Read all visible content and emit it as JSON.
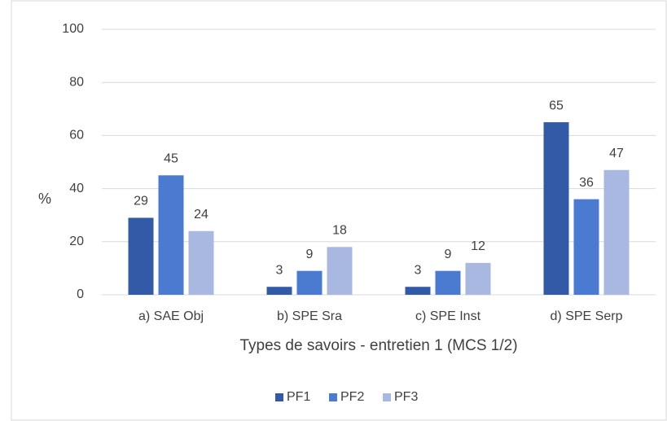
{
  "chart_data": {
    "type": "bar",
    "x_label": "Types de savoirs - entretien 1 (MCS 1/2)",
    "y_label": "%",
    "categories": [
      "a) SAE Obj",
      "b) SPE Sra",
      "c) SPE Inst",
      "d) SPE Serp"
    ],
    "series": [
      {
        "name": "PF1",
        "color": "#335aa6",
        "values": [
          29,
          3,
          3,
          65
        ]
      },
      {
        "name": "PF2",
        "color": "#4a7bd0",
        "values": [
          45,
          9,
          9,
          36
        ]
      },
      {
        "name": "PF3",
        "color": "#a8b8e0",
        "values": [
          24,
          18,
          12,
          47
        ]
      }
    ],
    "ylim": [
      0,
      100
    ],
    "yticks": [
      0,
      20,
      40,
      60,
      80,
      100
    ],
    "grid": true,
    "legend": "bottom"
  }
}
